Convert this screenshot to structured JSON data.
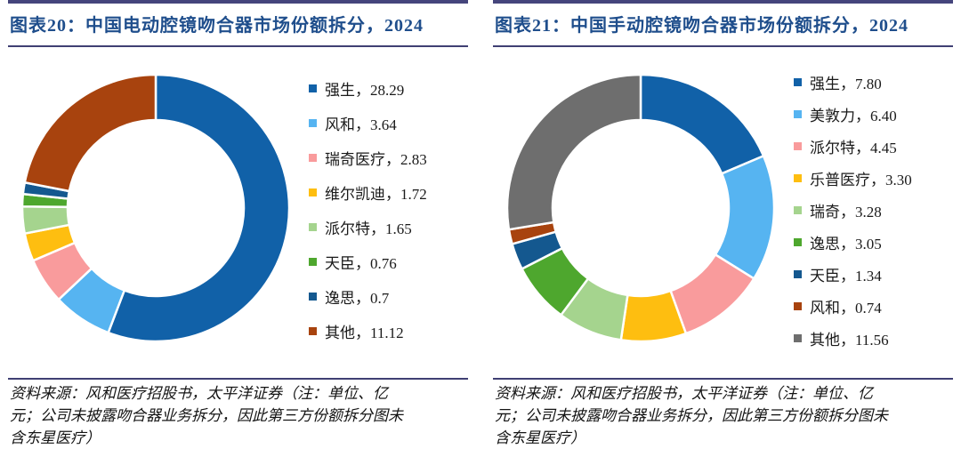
{
  "styles": {
    "title_color": "#1F4E8C",
    "rule_color": "#3F3F73",
    "top_bar_color": "#45457C",
    "text_color": "#1A1A1A",
    "slice_gap_color": "#FFFFFF",
    "background": "#FFFFFF"
  },
  "chart_data": [
    {
      "type": "pie",
      "donut": true,
      "start_angle_deg": 0,
      "direction": "clockwise",
      "legend_position": "right",
      "title": "图表20：中国电动腔镜吻合器市场份额拆分，2024",
      "unit": "亿元",
      "source": "资料来源：风和医疗招股书，太平洋证券（注：单位、亿元；公司未披露吻合器业务拆分，因此第三方份额拆分图未含东星医疗）",
      "slices": [
        {
          "label": "强生",
          "value": 28.29,
          "display": "28.29",
          "color": "#1161A8"
        },
        {
          "label": "风和",
          "value": 3.64,
          "display": "3.64",
          "color": "#56B4F1"
        },
        {
          "label": "瑞奇医疗",
          "value": 2.83,
          "display": "2.83",
          "color": "#F99B9C"
        },
        {
          "label": "维尔凯迪",
          "value": 1.72,
          "display": "1.72",
          "color": "#FEBE10"
        },
        {
          "label": "派尔特",
          "value": 1.65,
          "display": "1.65",
          "color": "#A5D48E"
        },
        {
          "label": "天臣",
          "value": 0.76,
          "display": "0.76",
          "color": "#4EA72E"
        },
        {
          "label": "逸思",
          "value": 0.7,
          "display": "0.7",
          "color": "#14588F"
        },
        {
          "label": "其他",
          "value": 11.12,
          "display": "11.12",
          "color": "#A8430E"
        }
      ]
    },
    {
      "type": "pie",
      "donut": true,
      "start_angle_deg": 0,
      "direction": "clockwise",
      "legend_position": "right",
      "title": "图表21：中国手动腔镜吻合器市场份额拆分，2024",
      "unit": "亿元",
      "source": "资料来源：风和医疗招股书，太平洋证券（注：单位、亿元；公司未披露吻合器业务拆分，因此第三方份额拆分图未含东星医疗）",
      "slices": [
        {
          "label": "强生",
          "value": 7.8,
          "display": "7.80",
          "color": "#1161A8"
        },
        {
          "label": "美敦力",
          "value": 6.4,
          "display": "6.40",
          "color": "#56B4F1"
        },
        {
          "label": "派尔特",
          "value": 4.45,
          "display": "4.45",
          "color": "#F99B9C"
        },
        {
          "label": "乐普医疗",
          "value": 3.3,
          "display": "3.30",
          "color": "#FEBE10"
        },
        {
          "label": "瑞奇",
          "value": 3.28,
          "display": "3.28",
          "color": "#A5D48E"
        },
        {
          "label": "逸思",
          "value": 3.05,
          "display": "3.05",
          "color": "#4EA72E"
        },
        {
          "label": "天臣",
          "value": 1.34,
          "display": "1.34",
          "color": "#14588F"
        },
        {
          "label": "风和",
          "value": 0.74,
          "display": "0.74",
          "color": "#A8430E"
        },
        {
          "label": "其他",
          "value": 11.56,
          "display": "11.56",
          "color": "#6E6E6E"
        }
      ]
    }
  ]
}
